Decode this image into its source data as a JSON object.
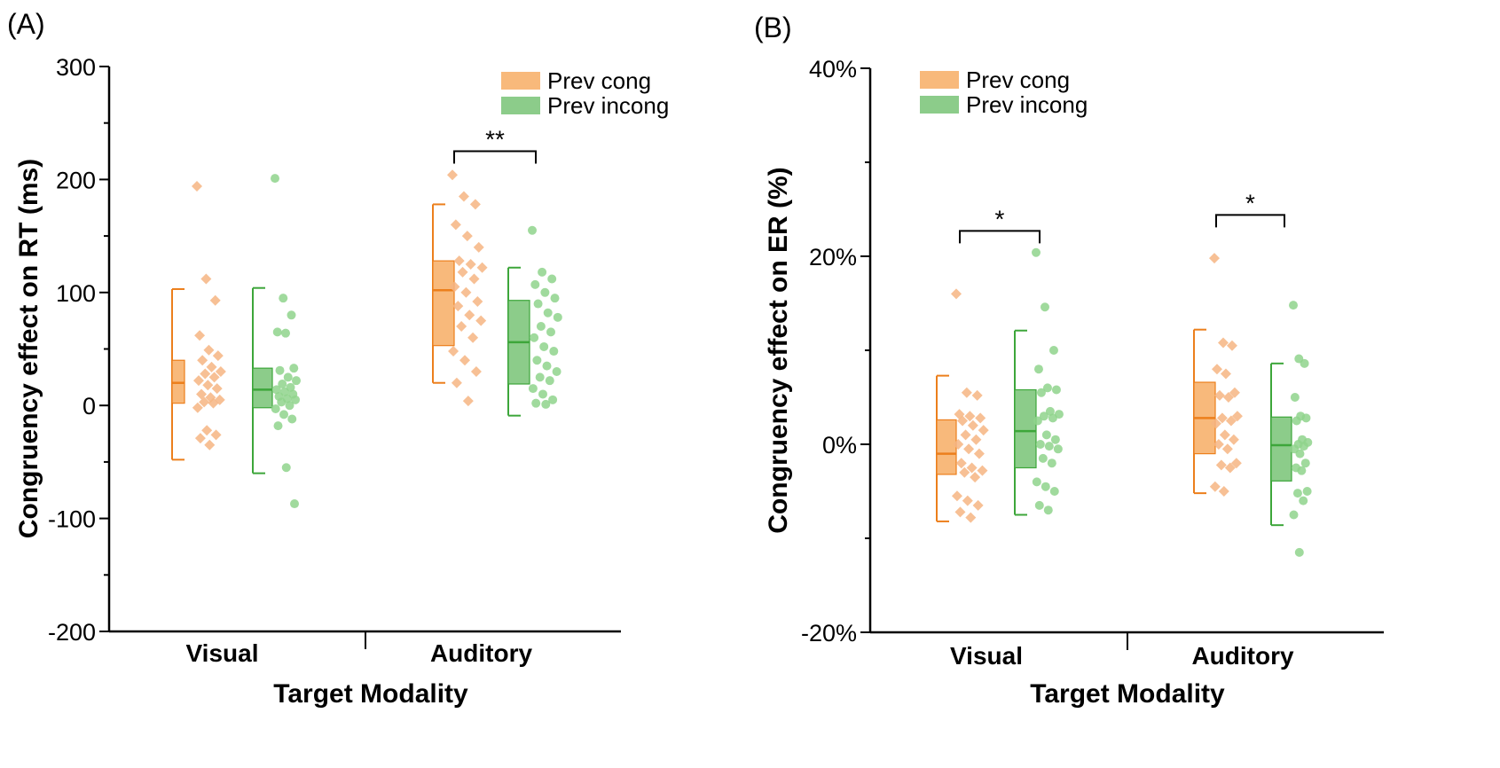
{
  "colors": {
    "cong_fill": "#f8b97b",
    "cong_line": "#ec7f1c",
    "cong_point": "#f6b583",
    "incong_fill": "#8ccc8a",
    "incong_line": "#3da63a",
    "incong_point": "#8fd38c"
  },
  "chart_data": [
    {
      "type": "box",
      "panel_label": "(A)",
      "ylabel": "Congruency effect on RT (ms)",
      "xlabel": "Target Modality",
      "categories": [
        "Visual",
        "Auditory"
      ],
      "ylim": [
        -200,
        300
      ],
      "major_ticks": [
        -200,
        -100,
        0,
        100,
        200,
        300
      ],
      "tick_labels": [
        "-200",
        "-100",
        "0",
        "100",
        "200",
        "300"
      ],
      "minor_step": 50,
      "legend": [
        "Prev cong",
        "Prev incong"
      ],
      "series": [
        {
          "name": "Prev cong",
          "stats": [
            {
              "min": -48,
              "q1": 2,
              "median": 20,
              "q3": 40,
              "max": 103
            },
            {
              "min": 20,
              "q1": 53,
              "median": 102,
              "q3": 128,
              "max": 178
            }
          ],
          "points": [
            [
              194,
              112,
              93,
              62,
              49,
              44,
              40,
              34,
              30,
              28,
              25,
              22,
              18,
              15,
              10,
              7,
              5,
              3,
              2,
              -2,
              -22,
              -26,
              -29,
              -35
            ],
            [
              204,
              185,
              178,
              160,
              150,
              140,
              128,
              125,
              122,
              118,
              112,
              105,
              100,
              92,
              88,
              80,
              75,
              70,
              60,
              48,
              40,
              30,
              20,
              4
            ]
          ]
        },
        {
          "name": "Prev incong",
          "stats": [
            {
              "min": -60,
              "q1": -2,
              "median": 14,
              "q3": 33,
              "max": 104
            },
            {
              "min": -9,
              "q1": 19,
              "median": 56,
              "q3": 93,
              "max": 122
            }
          ],
          "points": [
            [
              201,
              95,
              80,
              65,
              64,
              33,
              31,
              25,
              22,
              19,
              16,
              14,
              12,
              10,
              8,
              6,
              5,
              3,
              0,
              -3,
              -8,
              -12,
              -18,
              -55,
              -87
            ],
            [
              155,
              118,
              112,
              107,
              100,
              95,
              90,
              82,
              78,
              70,
              65,
              60,
              52,
              48,
              40,
              35,
              30,
              25,
              22,
              15,
              10,
              5,
              2,
              1
            ]
          ]
        }
      ],
      "significance": [
        {
          "category": "Auditory",
          "label": "**",
          "y": 225
        }
      ]
    },
    {
      "type": "box",
      "panel_label": "(B)",
      "ylabel": "Congruency effect on ER (%)",
      "xlabel": "Target Modality",
      "categories": [
        "Visual",
        "Auditory"
      ],
      "ylim": [
        -20,
        40
      ],
      "major_ticks": [
        -20,
        0,
        20,
        40
      ],
      "tick_labels": [
        "-20%",
        "0%",
        "20%",
        "40%"
      ],
      "minor_step": 10,
      "legend": [
        "Prev cong",
        "Prev incong"
      ],
      "series": [
        {
          "name": "Prev cong",
          "stats": [
            {
              "min": -8.2,
              "q1": -3.2,
              "median": -1.0,
              "q3": 2.6,
              "max": 7.3
            },
            {
              "min": -5.2,
              "q1": -1.0,
              "median": 2.8,
              "q3": 6.6,
              "max": 12.2
            }
          ],
          "points": [
            [
              16.0,
              5.5,
              5.2,
              3.2,
              3.0,
              2.8,
              2.5,
              2.0,
              1.5,
              1.0,
              0.5,
              0,
              -0.5,
              -1.0,
              -2.0,
              -2.5,
              -2.8,
              -3.0,
              -3.5,
              -5.5,
              -6.0,
              -6.5,
              -7.2,
              -7.8
            ],
            [
              19.8,
              10.8,
              10.5,
              8.0,
              7.5,
              5.5,
              5.2,
              5.0,
              3.0,
              2.8,
              2.5,
              2.2,
              1.0,
              0.5,
              0,
              -0.5,
              -2.0,
              -2.2,
              -2.5,
              -4.5,
              -5.0
            ]
          ]
        },
        {
          "name": "Prev incong",
          "stats": [
            {
              "min": -7.5,
              "q1": -2.5,
              "median": 1.4,
              "q3": 5.8,
              "max": 12.1
            },
            {
              "min": -8.6,
              "q1": -3.9,
              "median": -0.1,
              "q3": 2.9,
              "max": 8.6
            }
          ],
          "points": [
            [
              20.4,
              14.6,
              10.0,
              8.0,
              6.0,
              5.8,
              5.5,
              3.5,
              3.2,
              3.0,
              2.8,
              2.5,
              1.0,
              0.5,
              0,
              -0.2,
              -0.5,
              -1.5,
              -2.0,
              -4.0,
              -4.5,
              -5.0,
              -6.5,
              -7.0
            ],
            [
              14.8,
              9.1,
              8.6,
              5.0,
              3.0,
              2.8,
              2.5,
              0.5,
              0.2,
              0,
              -0.2,
              -0.5,
              -1.0,
              -2.0,
              -2.5,
              -2.8,
              -5.0,
              -5.2,
              -6.0,
              -7.5,
              -11.5
            ]
          ]
        }
      ],
      "significance": [
        {
          "category": "Visual",
          "label": "*",
          "y": 22.7
        },
        {
          "category": "Auditory",
          "label": "*",
          "y": 24.4
        }
      ]
    }
  ]
}
